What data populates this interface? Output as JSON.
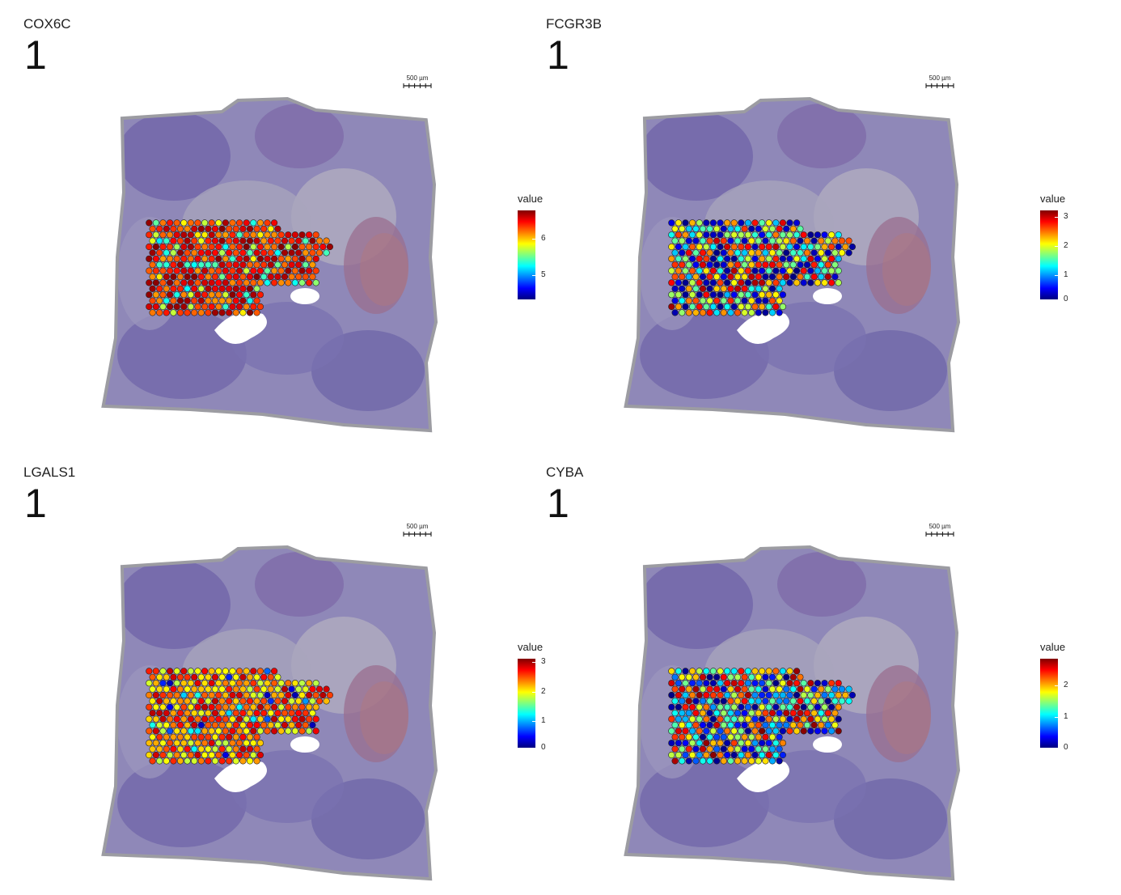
{
  "scalebar_label": "500 µm",
  "legend_title": "value",
  "colormap": [
    "#00007f",
    "#0000ff",
    "#007fff",
    "#00ffff",
    "#7fff7f",
    "#ffff00",
    "#ff7f00",
    "#ff0000",
    "#7f0000"
  ],
  "panels": [
    {
      "gene": "COX6C",
      "sample": "1",
      "ticks": [
        {
          "label": "6",
          "frac": 0.32
        },
        {
          "label": "5",
          "frac": 0.73
        }
      ],
      "pattern": "high"
    },
    {
      "gene": "FCGR3B",
      "sample": "1",
      "ticks": [
        {
          "label": "3",
          "frac": 0.07
        },
        {
          "label": "2",
          "frac": 0.4
        },
        {
          "label": "1",
          "frac": 0.73
        },
        {
          "label": "0",
          "frac": 1.0
        }
      ],
      "pattern": "mixed-low"
    },
    {
      "gene": "LGALS1",
      "sample": "1",
      "ticks": [
        {
          "label": "3",
          "frac": 0.04
        },
        {
          "label": "2",
          "frac": 0.37
        },
        {
          "label": "1",
          "frac": 0.7
        },
        {
          "label": "0",
          "frac": 1.0
        }
      ],
      "pattern": "mid-high"
    },
    {
      "gene": "CYBA",
      "sample": "1",
      "ticks": [
        {
          "label": "2",
          "frac": 0.3
        },
        {
          "label": "1",
          "frac": 0.65
        },
        {
          "label": "0",
          "frac": 1.0
        }
      ],
      "pattern": "mixed"
    }
  ]
}
